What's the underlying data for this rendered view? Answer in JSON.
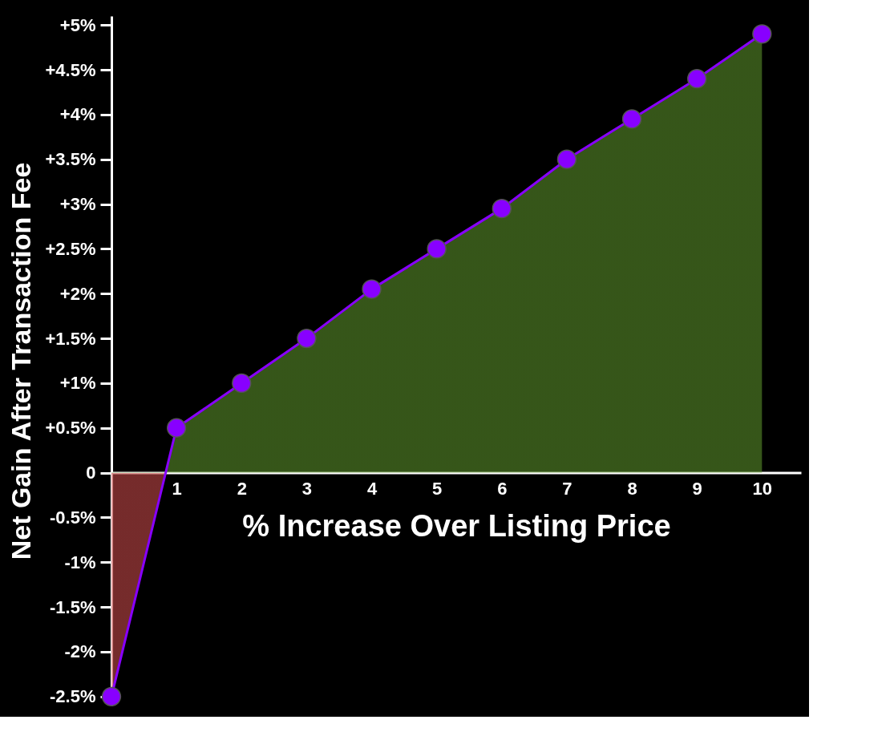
{
  "chart_data": {
    "type": "area",
    "xlabel": "% Increase Over Listing Price",
    "ylabel": "Net Gain After Transaction Fee",
    "x": [
      0,
      1,
      2,
      3,
      4,
      5,
      6,
      7,
      8,
      9,
      10
    ],
    "series": [
      {
        "color": "#8800ff",
        "values": [
          -2.5,
          0.5,
          1.0,
          1.5,
          2.05,
          2.5,
          2.95,
          3.5,
          3.95,
          4.4,
          4.9
        ]
      }
    ],
    "xlim": [
      0,
      10.6
    ],
    "xticks": [
      1,
      2,
      3,
      4,
      5,
      6,
      7,
      8,
      9,
      10
    ],
    "ylim": [
      -2.6,
      5.1
    ],
    "yticks": [
      {
        "value": -2.5,
        "label": "-2.5%"
      },
      {
        "value": -2,
        "label": "-2%"
      },
      {
        "value": -1.5,
        "label": "-1.5%"
      },
      {
        "value": -1,
        "label": "-1%"
      },
      {
        "value": -0.5,
        "label": "-0.5%"
      },
      0,
      {
        "value": 0.5,
        "label": "+0.5%"
      },
      {
        "value": 1,
        "label": "+1%"
      },
      {
        "value": 1.5,
        "label": "+1.5%"
      },
      {
        "value": 2,
        "label": "+2%"
      },
      {
        "value": 2.5,
        "label": "+2.5%"
      },
      {
        "value": 3,
        "label": "+3%"
      },
      {
        "value": 3.5,
        "label": "+3.5%"
      },
      {
        "value": 4,
        "label": "+4%"
      },
      {
        "value": 4.5,
        "label": "+4.5%"
      },
      {
        "value": 5,
        "label": "+5%"
      }
    ],
    "grid": false,
    "marker": "circle"
  }
}
